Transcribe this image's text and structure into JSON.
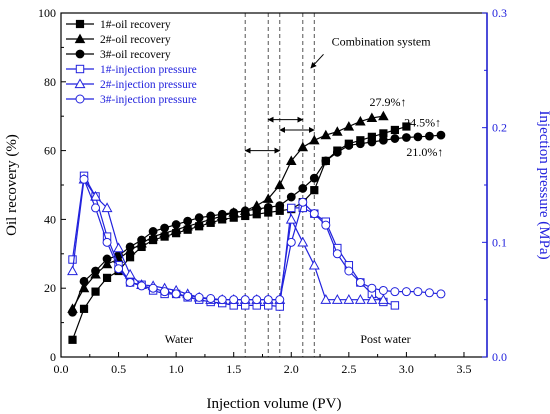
{
  "chart_data": {
    "type": "line",
    "xlabel": "Injection volume (PV)",
    "ylabel": "Oil recovery (%)",
    "y2label": "Injection pressure (MPa)",
    "xlim": [
      0,
      3.7
    ],
    "ylim": [
      0,
      100
    ],
    "y2lim": [
      0,
      0.3
    ],
    "x_ticks": [
      "0.0",
      "0.5",
      "1.0",
      "1.5",
      "2.0",
      "2.5",
      "3.0",
      "3.5"
    ],
    "y_ticks": [
      "0",
      "20",
      "40",
      "60",
      "80",
      "100"
    ],
    "y2_ticks": [
      "0.0",
      "0.1",
      "0.2",
      "0.3"
    ],
    "colors": {
      "recovery": "#000000",
      "pressure": "#2222dd",
      "guides": "#555555"
    },
    "legend_position": "top-left",
    "series": [
      {
        "name": "1#-oil recovery",
        "axis": "left",
        "marker": "square-filled",
        "x": [
          0.1,
          0.2,
          0.3,
          0.4,
          0.5,
          0.6,
          0.7,
          0.8,
          0.9,
          1.0,
          1.1,
          1.2,
          1.3,
          1.4,
          1.5,
          1.6,
          1.7,
          1.8,
          1.9,
          2.0,
          2.1,
          2.2,
          2.3,
          2.4,
          2.5,
          2.6,
          2.7,
          2.8,
          2.9,
          3.0
        ],
        "values": [
          5,
          14,
          19,
          23,
          25,
          29,
          32,
          34,
          35,
          36,
          37,
          38,
          39,
          40,
          40.5,
          41,
          41.5,
          42,
          42.5,
          43,
          45,
          48.5,
          57,
          60,
          62,
          63,
          64,
          65,
          66,
          67
        ]
      },
      {
        "name": "2#-oil recovery",
        "axis": "left",
        "marker": "triangle-filled",
        "x": [
          0.1,
          0.2,
          0.3,
          0.4,
          0.5,
          0.6,
          0.7,
          0.8,
          0.9,
          1.0,
          1.1,
          1.2,
          1.3,
          1.4,
          1.5,
          1.6,
          1.7,
          1.8,
          1.9,
          2.0,
          2.1,
          2.2,
          2.3,
          2.4,
          2.5,
          2.6,
          2.7,
          2.8
        ],
        "values": [
          14,
          20,
          24,
          27,
          28.5,
          31,
          33,
          35,
          36,
          37,
          38,
          39,
          40,
          41,
          42,
          42.5,
          44,
          46,
          50,
          57,
          61,
          63,
          64.5,
          65.5,
          67,
          68.5,
          69.5,
          70
        ]
      },
      {
        "name": "3#-oil recovery",
        "axis": "left",
        "marker": "circle-filled",
        "x": [
          0.1,
          0.2,
          0.3,
          0.4,
          0.5,
          0.6,
          0.7,
          0.8,
          0.9,
          1.0,
          1.1,
          1.2,
          1.3,
          1.4,
          1.5,
          1.6,
          1.7,
          1.8,
          1.9,
          2.0,
          2.1,
          2.2,
          2.3,
          2.4,
          2.5,
          2.6,
          2.7,
          2.8,
          2.9,
          3.0,
          3.1,
          3.2,
          3.3
        ],
        "values": [
          13,
          22,
          25,
          28.5,
          29.5,
          32,
          34,
          36.5,
          37.5,
          38.5,
          39.5,
          40.5,
          41,
          41.5,
          42,
          42.5,
          43,
          43.5,
          44,
          46.5,
          49,
          52,
          57,
          59.5,
          61.5,
          62,
          62.5,
          63,
          63.5,
          63.8,
          64,
          64.2,
          64.5
        ]
      },
      {
        "name": "1#-injection pressure",
        "axis": "right",
        "marker": "square-open",
        "x": [
          0.1,
          0.2,
          0.3,
          0.4,
          0.5,
          0.6,
          0.7,
          0.8,
          0.9,
          1.0,
          1.1,
          1.2,
          1.3,
          1.4,
          1.5,
          1.6,
          1.7,
          1.8,
          1.9,
          2.0,
          2.1,
          2.2,
          2.3,
          2.4,
          2.5,
          2.6,
          2.7,
          2.8,
          2.9
        ],
        "values": [
          0.085,
          0.158,
          0.14,
          0.105,
          0.08,
          0.065,
          0.063,
          0.058,
          0.055,
          0.055,
          0.052,
          0.05,
          0.048,
          0.047,
          0.045,
          0.045,
          0.045,
          0.045,
          0.044,
          0.13,
          0.13,
          0.125,
          0.118,
          0.095,
          0.08,
          0.065,
          0.055,
          0.048,
          0.045
        ]
      },
      {
        "name": "2#-injection pressure",
        "axis": "right",
        "marker": "triangle-open",
        "x": [
          0.1,
          0.2,
          0.3,
          0.4,
          0.5,
          0.6,
          0.7,
          0.8,
          0.9,
          1.0,
          1.1,
          1.2,
          1.3,
          1.4,
          1.5,
          1.6,
          1.7,
          1.8,
          1.9,
          2.0,
          2.1,
          2.2,
          2.3,
          2.4,
          2.5,
          2.6,
          2.7,
          2.8
        ],
        "values": [
          0.075,
          0.155,
          0.14,
          0.13,
          0.095,
          0.072,
          0.063,
          0.062,
          0.06,
          0.058,
          0.055,
          0.052,
          0.05,
          0.05,
          0.05,
          0.05,
          0.05,
          0.05,
          0.05,
          0.12,
          0.1,
          0.08,
          0.05,
          0.05,
          0.05,
          0.05,
          0.05,
          0.05
        ]
      },
      {
        "name": "3#-injection pressure",
        "axis": "right",
        "marker": "circle-open",
        "x": [
          0.2,
          0.3,
          0.4,
          0.5,
          0.6,
          0.7,
          0.8,
          0.9,
          1.0,
          1.1,
          1.2,
          1.3,
          1.4,
          1.5,
          1.6,
          1.7,
          1.8,
          1.9,
          2.0,
          2.1,
          2.2,
          2.3,
          2.4,
          2.5,
          2.6,
          2.7,
          2.8,
          2.9,
          3.0,
          3.1,
          3.2,
          3.3
        ],
        "values": [
          0.155,
          0.13,
          0.1,
          0.077,
          0.065,
          0.062,
          0.06,
          0.057,
          0.055,
          0.053,
          0.052,
          0.051,
          0.05,
          0.05,
          0.05,
          0.05,
          0.05,
          0.05,
          0.1,
          0.135,
          0.125,
          0.115,
          0.09,
          0.075,
          0.065,
          0.06,
          0.058,
          0.057,
          0.057,
          0.057,
          0.056,
          0.055
        ]
      }
    ],
    "vlines": [
      1.6,
      1.8,
      1.9,
      2.1,
      2.2
    ],
    "arrows": [
      {
        "x1": 1.6,
        "x2": 1.9,
        "y": 60
      },
      {
        "x1": 1.8,
        "x2": 2.1,
        "y": 69
      },
      {
        "x1": 1.9,
        "x2": 2.2,
        "y": 66
      }
    ],
    "annotations": [
      {
        "text": "27.9%↑",
        "x": 2.68,
        "y": 73
      },
      {
        "text": "24.5%↑",
        "x": 2.98,
        "y": 67
      },
      {
        "text": "21.0%↑",
        "x": 3.0,
        "y": 58.5
      },
      {
        "text": "Combination system",
        "x": 2.35,
        "y": 90.5
      },
      {
        "text": "Water",
        "x": 0.9,
        "y": 4
      },
      {
        "text": "Post water",
        "x": 2.6,
        "y": 4
      }
    ],
    "combination_arrow": {
      "from": [
        2.28,
        88
      ],
      "to": [
        2.17,
        84
      ]
    }
  }
}
